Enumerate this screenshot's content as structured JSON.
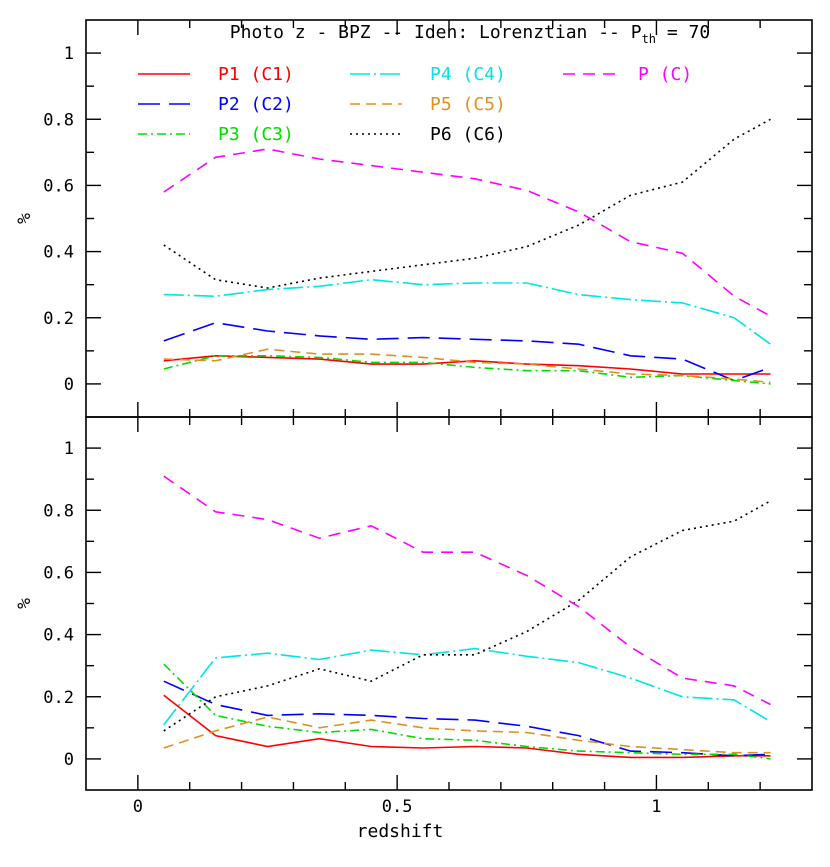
{
  "chart_data": {
    "type": "line",
    "title_prefix": "Photo z - BPZ -- Iden: Lorenztian -- P",
    "title_subscript": "th",
    "title_suffix": " = 70",
    "xlabel": "redshift",
    "ylabel": "%",
    "xlim": [
      -0.1,
      1.3
    ],
    "ylim": [
      -0.1,
      1.1
    ],
    "xticks": [
      {
        "value": 0,
        "label": "0"
      },
      {
        "value": 0.5,
        "label": "0.5"
      },
      {
        "value": 1,
        "label": "1"
      }
    ],
    "yticks": [
      {
        "value": 0,
        "label": "0"
      },
      {
        "value": 0.2,
        "label": "0.2"
      },
      {
        "value": 0.4,
        "label": "0.4"
      },
      {
        "value": 0.6,
        "label": "0.6"
      },
      {
        "value": 0.8,
        "label": "0.8"
      },
      {
        "value": 1,
        "label": "1"
      }
    ],
    "x": [
      0.05,
      0.15,
      0.25,
      0.35,
      0.45,
      0.55,
      0.65,
      0.75,
      0.85,
      0.95,
      1.05,
      1.15,
      1.22
    ],
    "legend": [
      {
        "key": "p1",
        "label": "P1 (C1)",
        "color": "#ff0000",
        "dash": ""
      },
      {
        "key": "p2",
        "label": "P2 (C2)",
        "color": "#0000ff",
        "dash": "22,9"
      },
      {
        "key": "p3",
        "label": "P3 (C3)",
        "color": "#00dd00",
        "dash": "9,4,2,4"
      },
      {
        "key": "p4",
        "label": "P4 (C4)",
        "color": "#00e5e5",
        "dash": "20,4,2,4"
      },
      {
        "key": "p5",
        "label": "P5 (C5)",
        "color": "#e09020",
        "dash": "10,6"
      },
      {
        "key": "p6",
        "label": "P6 (C6)",
        "color": "#000000",
        "dash": "2,4"
      },
      {
        "key": "p",
        "label": "P (C)",
        "color": "#ff00ff",
        "dash": "12,8"
      }
    ],
    "panels": [
      {
        "name": "top",
        "series": [
          {
            "key": "p1",
            "values": [
              0.07,
              0.085,
              0.08,
              0.075,
              0.06,
              0.06,
              0.07,
              0.06,
              0.055,
              0.045,
              0.03,
              0.03,
              0.03
            ]
          },
          {
            "key": "p2",
            "values": [
              0.13,
              0.185,
              0.16,
              0.145,
              0.135,
              0.14,
              0.135,
              0.13,
              0.12,
              0.085,
              0.075,
              0.01,
              0.05
            ]
          },
          {
            "key": "p3",
            "values": [
              0.045,
              0.085,
              0.085,
              0.08,
              0.065,
              0.065,
              0.05,
              0.04,
              0.04,
              0.02,
              0.025,
              0.01,
              0.0
            ]
          },
          {
            "key": "p4",
            "values": [
              0.27,
              0.265,
              0.285,
              0.295,
              0.315,
              0.3,
              0.305,
              0.305,
              0.27,
              0.255,
              0.245,
              0.2,
              0.12
            ]
          },
          {
            "key": "p5",
            "values": [
              0.075,
              0.07,
              0.105,
              0.09,
              0.09,
              0.08,
              0.065,
              0.06,
              0.045,
              0.03,
              0.025,
              0.015,
              0.005
            ]
          },
          {
            "key": "p6",
            "values": [
              0.42,
              0.315,
              0.29,
              0.32,
              0.34,
              0.36,
              0.38,
              0.415,
              0.48,
              0.57,
              0.61,
              0.74,
              0.8
            ]
          },
          {
            "key": "p",
            "values": [
              0.58,
              0.685,
              0.71,
              0.68,
              0.66,
              0.64,
              0.62,
              0.585,
              0.52,
              0.43,
              0.395,
              0.265,
              0.205
            ]
          }
        ]
      },
      {
        "name": "bottom",
        "series": [
          {
            "key": "p1",
            "values": [
              0.205,
              0.075,
              0.04,
              0.065,
              0.04,
              0.035,
              0.04,
              0.035,
              0.015,
              0.005,
              0.005,
              0.01,
              0.01
            ]
          },
          {
            "key": "p2",
            "values": [
              0.25,
              0.175,
              0.14,
              0.145,
              0.14,
              0.13,
              0.125,
              0.105,
              0.075,
              0.025,
              0.02,
              0.01,
              0.015
            ]
          },
          {
            "key": "p3",
            "values": [
              0.305,
              0.14,
              0.105,
              0.085,
              0.095,
              0.065,
              0.06,
              0.04,
              0.025,
              0.02,
              0.015,
              0.015,
              0.0
            ]
          },
          {
            "key": "p4",
            "values": [
              0.11,
              0.325,
              0.34,
              0.32,
              0.35,
              0.335,
              0.355,
              0.33,
              0.31,
              0.26,
              0.2,
              0.19,
              0.12
            ]
          },
          {
            "key": "p5",
            "values": [
              0.035,
              0.09,
              0.135,
              0.1,
              0.125,
              0.1,
              0.09,
              0.085,
              0.06,
              0.04,
              0.03,
              0.02,
              0.02
            ]
          },
          {
            "key": "p6",
            "values": [
              0.09,
              0.2,
              0.235,
              0.29,
              0.25,
              0.335,
              0.335,
              0.41,
              0.51,
              0.65,
              0.735,
              0.765,
              0.83
            ]
          },
          {
            "key": "p",
            "values": [
              0.91,
              0.795,
              0.77,
              0.71,
              0.75,
              0.665,
              0.665,
              0.59,
              0.49,
              0.36,
              0.26,
              0.235,
              0.175
            ]
          }
        ]
      }
    ]
  }
}
